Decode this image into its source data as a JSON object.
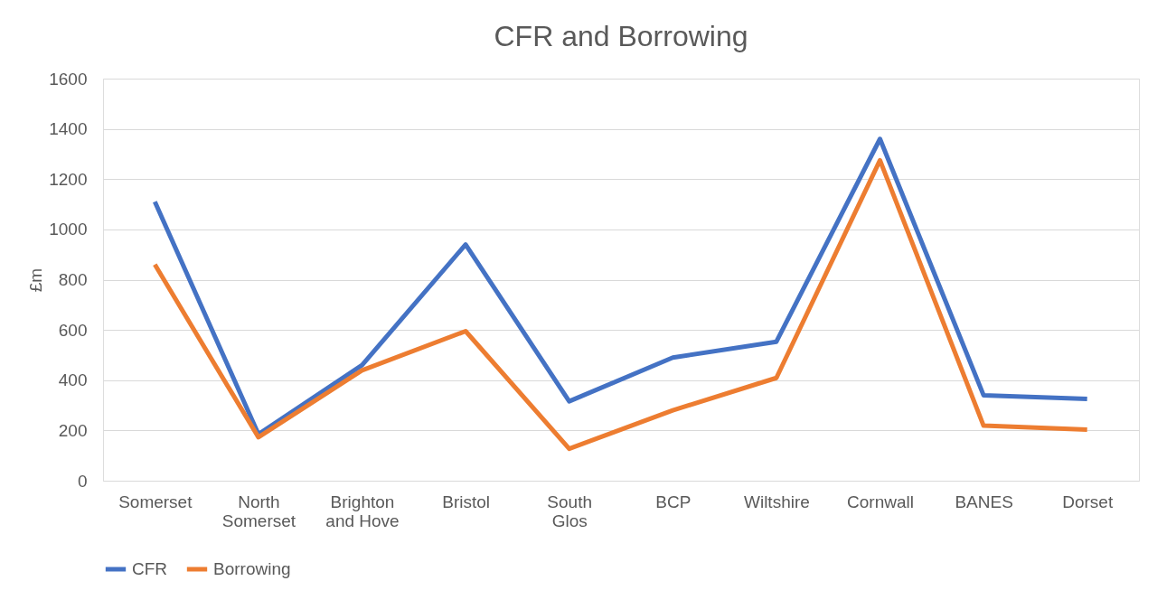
{
  "chart_data": {
    "type": "line",
    "title": "CFR and Borrowing",
    "ylabel": "£m",
    "categories": [
      "Somerset",
      "North Somerset",
      "Brighton and Hove",
      "Bristol",
      "South Glos",
      "BCP",
      "Wiltshire",
      "Cornwall",
      "BANES",
      "Dorset"
    ],
    "series": [
      {
        "name": "CFR",
        "color": "#4472c4",
        "values": [
          1110,
          185,
          460,
          940,
          316,
          490,
          553,
          1360,
          340,
          325
        ]
      },
      {
        "name": "Borrowing",
        "color": "#ed7d31",
        "values": [
          860,
          173,
          439,
          595,
          127,
          280,
          409,
          1275,
          219,
          203
        ]
      }
    ],
    "ylim": [
      0,
      1600
    ],
    "yticks": [
      0,
      200,
      400,
      600,
      800,
      1000,
      1200,
      1400,
      1600
    ],
    "grid": "y",
    "legend": "bottom",
    "marker": "none",
    "line_style": "solid"
  }
}
